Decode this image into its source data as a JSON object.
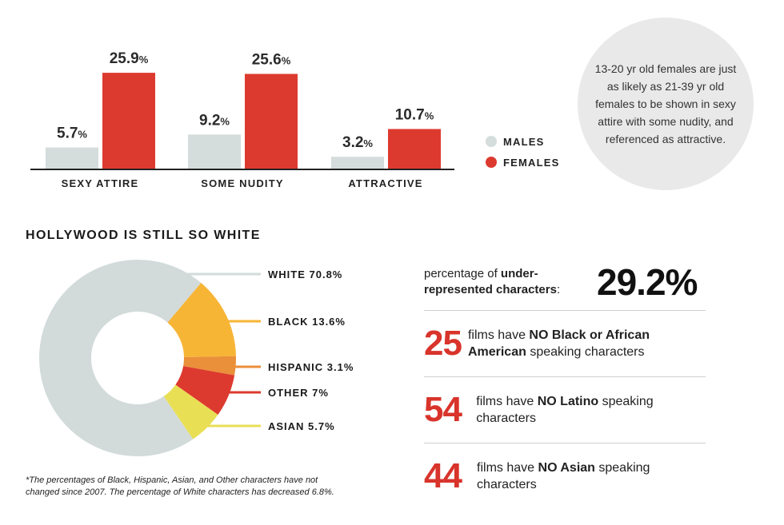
{
  "colors": {
    "males": "#d4dcdc",
    "females": "#dd3a2f",
    "white": "#d2dada",
    "black": "#f7b536",
    "hispanic": "#ea8f3a",
    "other": "#dd3a2f",
    "asian": "#e9df55",
    "accent_red": "#d8342b"
  },
  "chart_data": [
    {
      "type": "bar",
      "categories": [
        "SEXY ATTIRE",
        "SOME NUDITY",
        "ATTRACTIVE"
      ],
      "series": [
        {
          "name": "MALES",
          "values": [
            5.7,
            9.2,
            3.2
          ]
        },
        {
          "name": "FEMALES",
          "values": [
            25.9,
            25.6,
            10.7
          ]
        }
      ],
      "value_labels": {
        "MALES": [
          "5.7",
          "9.2",
          "3.2"
        ],
        "FEMALES": [
          "25.9",
          "25.6",
          "10.7"
        ]
      },
      "value_suffix": "%",
      "legend_position": "right",
      "ylim": [
        0,
        27
      ]
    },
    {
      "type": "pie",
      "title": "HOLLYWOOD IS STILL SO WHITE",
      "slices": [
        {
          "label": "WHITE 70.8%",
          "value": 70.8
        },
        {
          "label": "BLACK 13.6%",
          "value": 13.6
        },
        {
          "label": "HISPANIC 3.1%",
          "value": 3.1
        },
        {
          "label": "OTHER 7%",
          "value": 7
        },
        {
          "label": "ASIAN 5.7%",
          "value": 5.7
        }
      ]
    }
  ],
  "bubble": {
    "text": "13-20 yr old females are just as likely as 21-39 yr old females to be shown in sexy attire with some nudity, and referenced as attractive."
  },
  "footnote": "*The percentages of Black, Hispanic, Asian, and Other characters have not changed since 2007. The percentage of White characters has decreased 6.8%.",
  "underrep": {
    "label_pre": "percentage of ",
    "label_bold": "under-represented characters",
    "label_post": ":",
    "value": "29.2%"
  },
  "stats": [
    {
      "number": "25",
      "pre": "films have ",
      "bold": "NO Black or African American",
      "post": " speaking characters"
    },
    {
      "number": "54",
      "pre": "films have ",
      "bold": "NO Latino",
      "post": " speaking characters"
    },
    {
      "number": "44",
      "pre": "films have ",
      "bold": "NO Asian",
      "post": " speaking characters"
    }
  ]
}
